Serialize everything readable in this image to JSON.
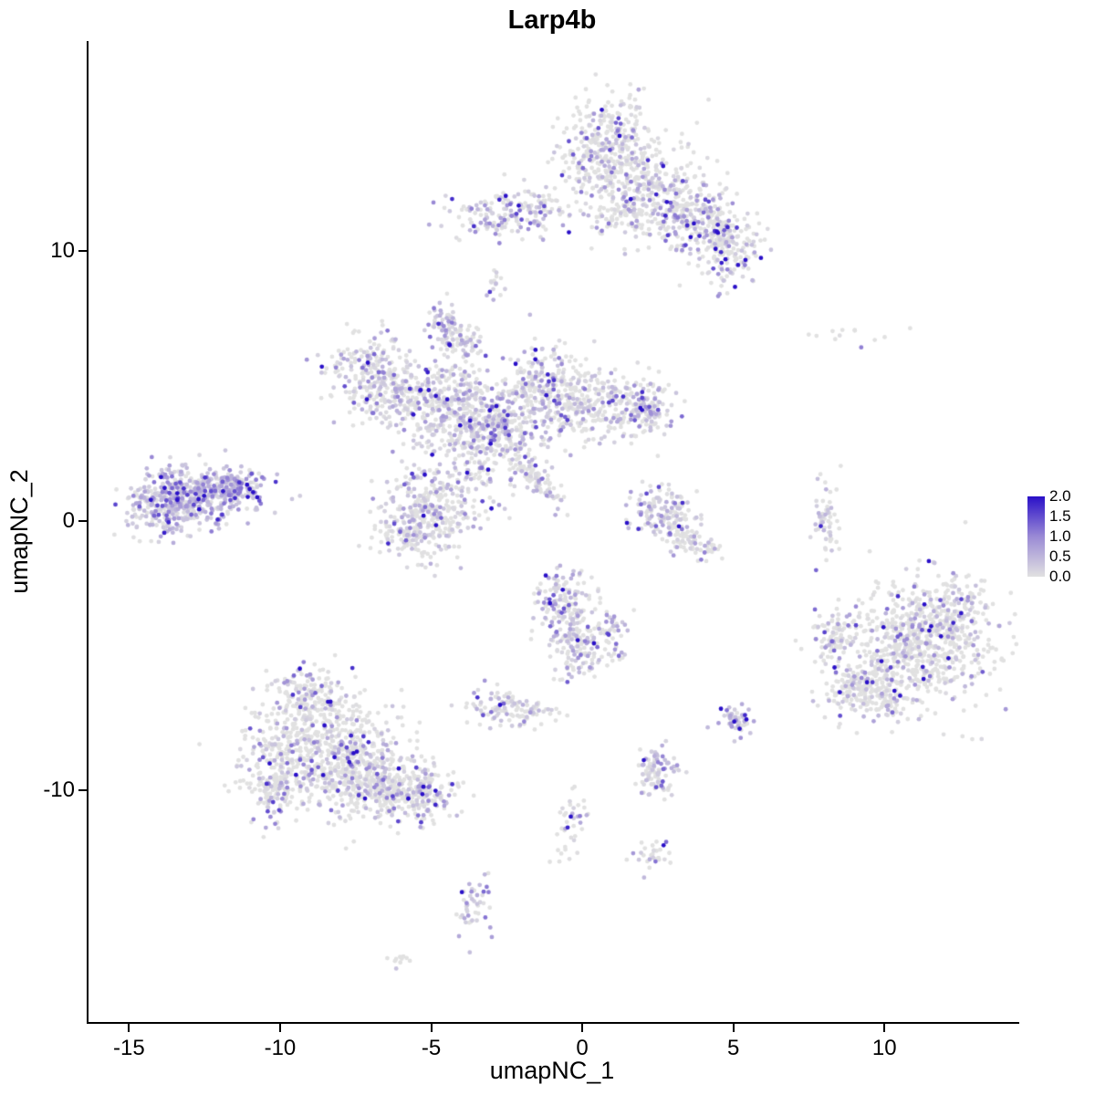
{
  "chart_data": {
    "type": "scatter",
    "title": "Larp4b",
    "xlabel": "umapNC_1",
    "ylabel": "umapNC_2",
    "xlim": [
      -16.4,
      14.4
    ],
    "ylim": [
      -18.6,
      17.8
    ],
    "x_ticks": [
      -15,
      -10,
      -5,
      0,
      5,
      10
    ],
    "y_ticks": [
      -10,
      0,
      10
    ],
    "grid": false,
    "legend_position": "right",
    "max_value": 2.0,
    "point_radius": 2.4,
    "seed": 42,
    "color_low": "#E1E1E1",
    "color_mid": "#9A8AD5",
    "color_high": "#2A10C8",
    "clusters": [
      {
        "id": "top-main-a",
        "cx": 0.8,
        "cy": 13.8,
        "sx": 0.85,
        "sy": 1.0,
        "rot": 0,
        "n": 340,
        "frac": 0.4,
        "mean": 0.5
      },
      {
        "id": "top-main-b",
        "cx": 2.3,
        "cy": 12.4,
        "sx": 1.1,
        "sy": 0.8,
        "rot": -20,
        "n": 260,
        "frac": 0.4,
        "mean": 0.5
      },
      {
        "id": "top-main-c",
        "cx": 3.9,
        "cy": 11.1,
        "sx": 0.95,
        "sy": 0.65,
        "rot": -25,
        "n": 220,
        "frac": 0.45,
        "mean": 0.5
      },
      {
        "id": "top-main-d",
        "cx": 4.7,
        "cy": 9.9,
        "sx": 0.6,
        "sy": 0.6,
        "rot": 0,
        "n": 140,
        "frac": 0.45,
        "mean": 0.5
      },
      {
        "id": "top-main-e",
        "cx": 1.3,
        "cy": 11.2,
        "sx": 0.7,
        "sy": 0.5,
        "rot": 0,
        "n": 90,
        "frac": 0.35,
        "mean": 0.5
      },
      {
        "id": "upper-left-a",
        "cx": -2.6,
        "cy": 11.4,
        "sx": 0.85,
        "sy": 0.45,
        "rot": 0,
        "n": 150,
        "frac": 0.6,
        "mean": 0.5
      },
      {
        "id": "upper-left-b",
        "cx": -1.3,
        "cy": 11.7,
        "sx": 0.4,
        "sy": 0.3,
        "rot": 0,
        "n": 40,
        "frac": 0.5,
        "mean": 0.5
      },
      {
        "id": "tiny-mid-upper",
        "cx": -2.9,
        "cy": 8.9,
        "sx": 0.15,
        "sy": 0.3,
        "rot": 0,
        "n": 15,
        "frac": 0.5,
        "mean": 0.4
      },
      {
        "id": "small-purple-knob",
        "cx": -4.6,
        "cy": 7.3,
        "sx": 0.25,
        "sy": 0.45,
        "rot": 0,
        "n": 45,
        "frac": 0.75,
        "mean": 0.55
      },
      {
        "id": "center-top-knob",
        "cx": -4.1,
        "cy": 6.6,
        "sx": 0.35,
        "sy": 0.4,
        "rot": 0,
        "n": 70,
        "frac": 0.5,
        "mean": 0.45
      },
      {
        "id": "center-arm-left-top",
        "cx": -7.2,
        "cy": 5.6,
        "sx": 0.65,
        "sy": 0.75,
        "rot": 0,
        "n": 190,
        "frac": 0.55,
        "mean": 0.45
      },
      {
        "id": "center-arm-left",
        "cx": -6.1,
        "cy": 4.6,
        "sx": 0.65,
        "sy": 0.55,
        "rot": 0,
        "n": 150,
        "frac": 0.5,
        "mean": 0.45
      },
      {
        "id": "center-core-a",
        "cx": -4.3,
        "cy": 4.3,
        "sx": 0.85,
        "sy": 0.85,
        "rot": 0,
        "n": 330,
        "frac": 0.55,
        "mean": 0.45
      },
      {
        "id": "center-core-b",
        "cx": -2.9,
        "cy": 3.3,
        "sx": 0.8,
        "sy": 0.8,
        "rot": 0,
        "n": 340,
        "frac": 0.6,
        "mean": 0.55
      },
      {
        "id": "center-arm-up-right",
        "cx": -1.3,
        "cy": 4.9,
        "sx": 0.65,
        "sy": 0.95,
        "rot": 0,
        "n": 240,
        "frac": 0.5,
        "mean": 0.45
      },
      {
        "id": "center-arm-right",
        "cx": 0.4,
        "cy": 4.3,
        "sx": 0.85,
        "sy": 0.65,
        "rot": 0,
        "n": 240,
        "frac": 0.5,
        "mean": 0.45
      },
      {
        "id": "center-arm-right-tip",
        "cx": 2.0,
        "cy": 4.1,
        "sx": 0.5,
        "sy": 0.55,
        "rot": 0,
        "n": 120,
        "frac": 0.55,
        "mean": 0.5
      },
      {
        "id": "center-diag-streak",
        "cx": -1.6,
        "cy": 1.6,
        "sx": 0.7,
        "sy": 0.18,
        "rot": -45,
        "n": 90,
        "frac": 0.4,
        "mean": 0.45
      },
      {
        "id": "far-left-main",
        "cx": -12.9,
        "cy": 1.0,
        "sx": 1.0,
        "sy": 0.55,
        "rot": 0,
        "n": 400,
        "frac": 0.85,
        "mean": 0.55
      },
      {
        "id": "far-left-tip",
        "cx": -11.5,
        "cy": 1.3,
        "sx": 0.45,
        "sy": 0.3,
        "rot": 0,
        "n": 140,
        "frac": 0.9,
        "mean": 0.6
      },
      {
        "id": "far-left-lower",
        "cx": -13.9,
        "cy": 0.4,
        "sx": 0.65,
        "sy": 0.5,
        "rot": 0,
        "n": 160,
        "frac": 0.8,
        "mean": 0.5
      },
      {
        "id": "center-lower-a",
        "cx": -4.9,
        "cy": 0.4,
        "sx": 0.85,
        "sy": 0.95,
        "rot": 0,
        "n": 330,
        "frac": 0.5,
        "mean": 0.45
      },
      {
        "id": "center-lower-b",
        "cx": -5.9,
        "cy": -0.5,
        "sx": 0.5,
        "sy": 0.4,
        "rot": 0,
        "n": 90,
        "frac": 0.5,
        "mean": 0.45
      },
      {
        "id": "mid-right-blob",
        "cx": 2.6,
        "cy": 0.3,
        "sx": 0.55,
        "sy": 0.5,
        "rot": 0,
        "n": 130,
        "frac": 0.65,
        "mean": 0.5
      },
      {
        "id": "mid-right-streak",
        "cx": 3.4,
        "cy": -0.7,
        "sx": 0.6,
        "sy": 0.25,
        "rot": -35,
        "n": 90,
        "frac": 0.3,
        "mean": 0.4
      },
      {
        "id": "right-strip",
        "cx": 8.0,
        "cy": 0.0,
        "sx": 0.2,
        "sy": 0.75,
        "rot": 0,
        "n": 60,
        "frac": 0.5,
        "mean": 0.4
      },
      {
        "id": "sparse-right-upper",
        "cx": 9.0,
        "cy": 7.0,
        "sx": 0.9,
        "sy": 0.2,
        "rot": 0,
        "n": 12,
        "frac": 0.15,
        "mean": 0.6
      },
      {
        "id": "right-main-a",
        "cx": 10.8,
        "cy": -4.6,
        "sx": 1.25,
        "sy": 1.15,
        "rot": 0,
        "n": 680,
        "frac": 0.3,
        "mean": 0.55
      },
      {
        "id": "right-main-b",
        "cx": 9.4,
        "cy": -6.3,
        "sx": 0.7,
        "sy": 0.55,
        "rot": 0,
        "n": 200,
        "frac": 0.3,
        "mean": 0.55
      },
      {
        "id": "right-main-c",
        "cx": 12.3,
        "cy": -3.5,
        "sx": 0.55,
        "sy": 0.65,
        "rot": 0,
        "n": 150,
        "frac": 0.3,
        "mean": 0.55
      },
      {
        "id": "right-main-left-bit",
        "cx": 8.3,
        "cy": -4.4,
        "sx": 0.3,
        "sy": 0.5,
        "rot": 0,
        "n": 70,
        "frac": 0.35,
        "mean": 0.5
      },
      {
        "id": "bottom-left-main",
        "cx": -8.6,
        "cy": -8.5,
        "sx": 1.25,
        "sy": 1.05,
        "rot": 0,
        "n": 680,
        "frac": 0.35,
        "mean": 0.5
      },
      {
        "id": "bottom-left-arm",
        "cx": -6.9,
        "cy": -9.8,
        "sx": 0.85,
        "sy": 0.6,
        "rot": -20,
        "n": 300,
        "frac": 0.35,
        "mean": 0.5
      },
      {
        "id": "bottom-left-tip",
        "cx": -5.3,
        "cy": -10.2,
        "sx": 0.55,
        "sy": 0.45,
        "rot": 0,
        "n": 150,
        "frac": 0.35,
        "mean": 0.5
      },
      {
        "id": "bottom-left-top-bump",
        "cx": -9.2,
        "cy": -6.4,
        "sx": 0.6,
        "sy": 0.5,
        "rot": 0,
        "n": 130,
        "frac": 0.35,
        "mean": 0.5
      },
      {
        "id": "bottom-left-lower-bulge",
        "cx": -10.3,
        "cy": -9.9,
        "sx": 0.5,
        "sy": 0.6,
        "rot": 0,
        "n": 120,
        "frac": 0.3,
        "mean": 0.5
      },
      {
        "id": "center-bottom-a",
        "cx": -0.7,
        "cy": -3.2,
        "sx": 0.5,
        "sy": 0.75,
        "rot": 0,
        "n": 170,
        "frac": 0.6,
        "mean": 0.5
      },
      {
        "id": "center-bottom-b",
        "cx": -0.2,
        "cy": -4.8,
        "sx": 0.4,
        "sy": 0.55,
        "rot": 0,
        "n": 90,
        "frac": 0.55,
        "mean": 0.5
      },
      {
        "id": "center-bottom-arm",
        "cx": 0.9,
        "cy": -4.2,
        "sx": 0.3,
        "sy": 0.6,
        "rot": 0,
        "n": 60,
        "frac": 0.5,
        "mean": 0.5
      },
      {
        "id": "small-mid-low",
        "cx": -2.7,
        "cy": -6.9,
        "sx": 0.5,
        "sy": 0.33,
        "rot": 0,
        "n": 90,
        "frac": 0.6,
        "mean": 0.5
      },
      {
        "id": "small-mid-low-trail",
        "cx": -1.6,
        "cy": -7.1,
        "sx": 0.4,
        "sy": 0.2,
        "rot": 0,
        "n": 30,
        "frac": 0.3,
        "mean": 0.4
      },
      {
        "id": "small-purple-low",
        "cx": 2.4,
        "cy": -9.3,
        "sx": 0.4,
        "sy": 0.45,
        "rot": 0,
        "n": 90,
        "frac": 0.75,
        "mean": 0.55
      },
      {
        "id": "dense-purple-dot",
        "cx": 5.0,
        "cy": -7.4,
        "sx": 0.28,
        "sy": 0.3,
        "rot": 0,
        "n": 55,
        "frac": 0.9,
        "mean": 0.55
      },
      {
        "id": "sparse-bottom-trail",
        "cx": -0.4,
        "cy": -11.4,
        "sx": 0.3,
        "sy": 0.75,
        "rot": 0,
        "n": 40,
        "frac": 0.5,
        "mean": 0.5
      },
      {
        "id": "small-bottom-right",
        "cx": 2.3,
        "cy": -12.4,
        "sx": 0.3,
        "sy": 0.3,
        "rot": 0,
        "n": 30,
        "frac": 0.45,
        "mean": 0.45
      },
      {
        "id": "bottom-trail",
        "cx": -3.6,
        "cy": -14.3,
        "sx": 0.3,
        "sy": 0.65,
        "rot": -15,
        "n": 45,
        "frac": 0.65,
        "mean": 0.5
      },
      {
        "id": "tiny-bottom",
        "cx": -6.2,
        "cy": -16.3,
        "sx": 0.18,
        "sy": 0.15,
        "rot": 0,
        "n": 10,
        "frac": 0.1,
        "mean": 0.4
      }
    ]
  },
  "legend": {
    "ticks": [
      "2.0",
      "1.5",
      "1.0",
      "0.5",
      "0.0"
    ]
  }
}
